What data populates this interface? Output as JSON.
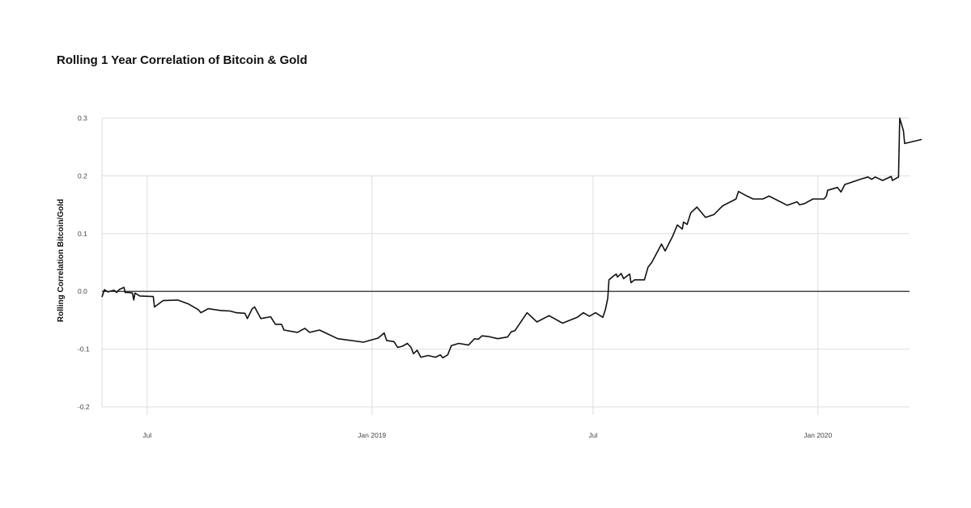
{
  "chart_data": {
    "type": "line",
    "title": "Rolling 1 Year Correlation of Bitcoin & Gold",
    "xlabel": "",
    "ylabel": "Rolling Correlation Bitcoin/Gold",
    "ylim": [
      -0.2,
      0.3
    ],
    "yticks": [
      {
        "value": 0.3,
        "label": "0.3"
      },
      {
        "value": 0.2,
        "label": "0.2"
      },
      {
        "value": 0.1,
        "label": "0.1"
      },
      {
        "value": 0.0,
        "label": "0.0"
      },
      {
        "value": -0.1,
        "label": "-0.1"
      },
      {
        "value": -0.2,
        "label": "-0.2"
      }
    ],
    "xlim": [
      "2018-05-25",
      "2020-03-16"
    ],
    "xticks": [
      {
        "date": "2018-07-01",
        "label": "Jul"
      },
      {
        "date": "2019-01-01",
        "label": "Jan 2019"
      },
      {
        "date": "2019-07-01",
        "label": "Jul"
      },
      {
        "date": "2020-01-01",
        "label": "Jan 2020"
      }
    ],
    "grid": true,
    "zero_line": true,
    "line_color": "#111111",
    "series": [
      {
        "points": [
          [
            "2018-05-25",
            -0.01
          ],
          [
            "2018-05-27",
            0.003
          ],
          [
            "2018-05-30",
            -0.001
          ],
          [
            "2018-06-02",
            0.001
          ],
          [
            "2018-06-04",
            0.002
          ],
          [
            "2018-06-06",
            -0.002
          ],
          [
            "2018-06-08",
            0.003
          ],
          [
            "2018-06-12",
            0.007
          ],
          [
            "2018-06-13",
            -0.002
          ],
          [
            "2018-06-16",
            -0.002
          ],
          [
            "2018-06-19",
            -0.003
          ],
          [
            "2018-06-20",
            -0.015
          ],
          [
            "2018-06-21",
            -0.003
          ],
          [
            "2018-06-25",
            -0.008
          ],
          [
            "2018-07-06",
            -0.009
          ],
          [
            "2018-07-07",
            -0.027
          ],
          [
            "2018-07-14",
            -0.016
          ],
          [
            "2018-07-26",
            -0.015
          ],
          [
            "2018-08-04",
            -0.022
          ],
          [
            "2018-08-12",
            -0.032
          ],
          [
            "2018-08-14",
            -0.037
          ],
          [
            "2018-08-20",
            -0.03
          ],
          [
            "2018-08-30",
            -0.033
          ],
          [
            "2018-09-07",
            -0.034
          ],
          [
            "2018-09-12",
            -0.037
          ],
          [
            "2018-09-19",
            -0.038
          ],
          [
            "2018-09-21",
            -0.047
          ],
          [
            "2018-09-25",
            -0.03
          ],
          [
            "2018-09-27",
            -0.027
          ],
          [
            "2018-10-02",
            -0.047
          ],
          [
            "2018-10-10",
            -0.044
          ],
          [
            "2018-10-14",
            -0.057
          ],
          [
            "2018-10-19",
            -0.057
          ],
          [
            "2018-10-21",
            -0.067
          ],
          [
            "2018-11-01",
            -0.071
          ],
          [
            "2018-11-07",
            -0.064
          ],
          [
            "2018-11-11",
            -0.071
          ],
          [
            "2018-11-19",
            -0.067
          ],
          [
            "2018-12-04",
            -0.082
          ],
          [
            "2018-12-25",
            -0.088
          ],
          [
            "2019-01-06",
            -0.081
          ],
          [
            "2019-01-11",
            -0.072
          ],
          [
            "2019-01-13",
            -0.085
          ],
          [
            "2019-01-19",
            -0.087
          ],
          [
            "2019-01-22",
            -0.097
          ],
          [
            "2019-01-26",
            -0.095
          ],
          [
            "2019-01-30",
            -0.09
          ],
          [
            "2019-02-02",
            -0.097
          ],
          [
            "2019-02-04",
            -0.108
          ],
          [
            "2019-02-07",
            -0.102
          ],
          [
            "2019-02-10",
            -0.114
          ],
          [
            "2019-02-16",
            -0.111
          ],
          [
            "2019-02-22",
            -0.114
          ],
          [
            "2019-02-26",
            -0.11
          ],
          [
            "2019-02-28",
            -0.115
          ],
          [
            "2019-03-04",
            -0.11
          ],
          [
            "2019-03-07",
            -0.094
          ],
          [
            "2019-03-13",
            -0.09
          ],
          [
            "2019-03-21",
            -0.093
          ],
          [
            "2019-03-26",
            -0.082
          ],
          [
            "2019-03-29",
            -0.083
          ],
          [
            "2019-04-01",
            -0.077
          ],
          [
            "2019-04-06",
            -0.078
          ],
          [
            "2019-04-14",
            -0.082
          ],
          [
            "2019-04-22",
            -0.079
          ],
          [
            "2019-04-25",
            -0.07
          ],
          [
            "2019-04-28",
            -0.068
          ],
          [
            "2019-05-08",
            -0.037
          ],
          [
            "2019-05-16",
            -0.053
          ],
          [
            "2019-05-26",
            -0.042
          ],
          [
            "2019-06-06",
            -0.055
          ],
          [
            "2019-06-18",
            -0.045
          ],
          [
            "2019-06-23",
            -0.037
          ],
          [
            "2019-06-28",
            -0.043
          ],
          [
            "2019-07-03",
            -0.037
          ],
          [
            "2019-07-09",
            -0.045
          ],
          [
            "2019-07-11",
            -0.032
          ],
          [
            "2019-07-13",
            -0.012
          ],
          [
            "2019-07-14",
            0.02
          ],
          [
            "2019-07-18",
            0.027
          ],
          [
            "2019-07-20",
            0.03
          ],
          [
            "2019-07-21",
            0.025
          ],
          [
            "2019-07-24",
            0.031
          ],
          [
            "2019-07-26",
            0.022
          ],
          [
            "2019-07-29",
            0.027
          ],
          [
            "2019-07-31",
            0.03
          ],
          [
            "2019-08-01",
            0.015
          ],
          [
            "2019-08-04",
            0.02
          ],
          [
            "2019-08-12",
            0.02
          ],
          [
            "2019-08-15",
            0.042
          ],
          [
            "2019-08-18",
            0.05
          ],
          [
            "2019-08-23",
            0.07
          ],
          [
            "2019-08-26",
            0.082
          ],
          [
            "2019-08-29",
            0.07
          ],
          [
            "2019-09-04",
            0.095
          ],
          [
            "2019-09-08",
            0.115
          ],
          [
            "2019-09-12",
            0.108
          ],
          [
            "2019-09-13",
            0.12
          ],
          [
            "2019-09-16",
            0.116
          ],
          [
            "2019-09-19",
            0.136
          ],
          [
            "2019-09-24",
            0.146
          ],
          [
            "2019-10-01",
            0.128
          ],
          [
            "2019-10-08",
            0.133
          ],
          [
            "2019-10-15",
            0.148
          ],
          [
            "2019-10-26",
            0.16
          ],
          [
            "2019-10-28",
            0.173
          ],
          [
            "2019-11-04",
            0.165
          ],
          [
            "2019-11-09",
            0.16
          ],
          [
            "2019-11-17",
            0.16
          ],
          [
            "2019-11-22",
            0.165
          ],
          [
            "2019-12-07",
            0.149
          ],
          [
            "2019-12-15",
            0.155
          ],
          [
            "2019-12-17",
            0.15
          ],
          [
            "2019-12-21",
            0.152
          ],
          [
            "2019-12-28",
            0.16
          ],
          [
            "2020-01-06",
            0.16
          ],
          [
            "2020-01-08",
            0.165
          ],
          [
            "2020-01-09",
            0.175
          ],
          [
            "2020-01-17",
            0.18
          ],
          [
            "2020-01-20",
            0.172
          ],
          [
            "2020-01-23",
            0.185
          ],
          [
            "2020-02-06",
            0.195
          ],
          [
            "2020-02-11",
            0.198
          ],
          [
            "2020-02-14",
            0.194
          ],
          [
            "2020-02-17",
            0.198
          ],
          [
            "2020-02-23",
            0.192
          ],
          [
            "2020-03-01",
            0.199
          ],
          [
            "2020-03-02",
            0.192
          ],
          [
            "2020-03-07",
            0.198
          ],
          [
            "2020-03-08",
            0.3
          ],
          [
            "2020-03-11",
            0.278
          ],
          [
            "2020-03-12",
            0.256
          ],
          [
            "2020-03-26",
            0.263
          ]
        ]
      }
    ]
  }
}
